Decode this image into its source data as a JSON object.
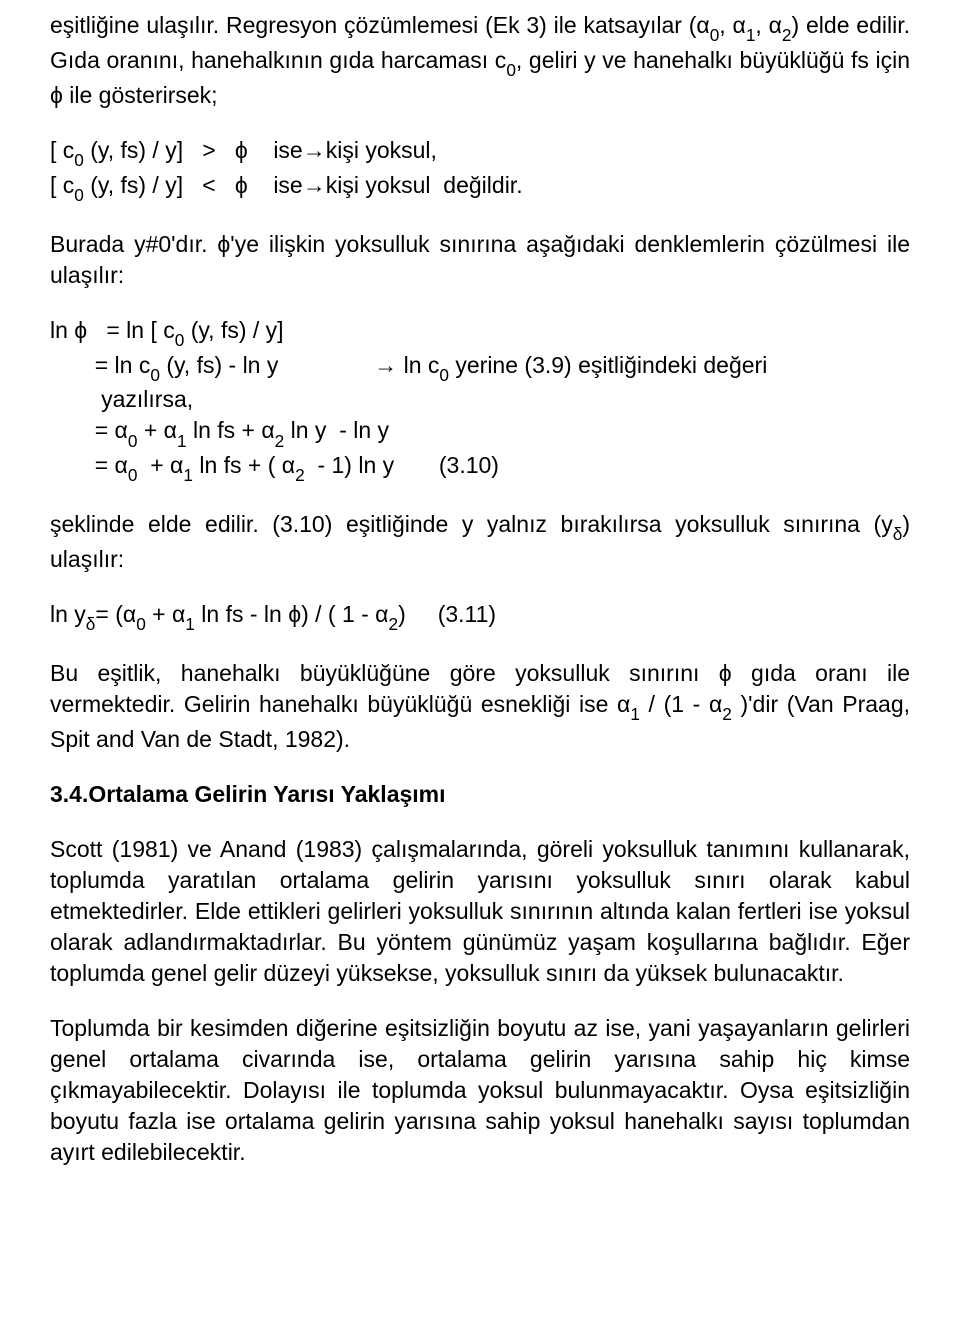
{
  "p1_pre": "eşitliğine ulaşılır. Regresyon çözümlemesi (Ek 3) ile katsayılar (α",
  "p1_s0": "0",
  "p1_mid1": ", α",
  "p1_s1": "1",
  "p1_mid2": ", α",
  "p1_s2": "2",
  "p1_post": ") elde edilir. Gıda oranını, hanehalkının gıda harcaması c",
  "p1_s3": "0",
  "p1_end": ", geliri y ve hanehalkı büyüklüğü fs için  ϕ ile gösterirsek;",
  "l1_pre": "[ c",
  "l1_s0": "0",
  "l1_post": " (y, fs) / y]   >   ϕ    ise→kişi yoksul,",
  "l2_pre": "[ c",
  "l2_s0": "0",
  "l2_post": " (y, fs) / y]   <   ϕ    ise→kişi yoksul  değildir.",
  "p2": "Burada        y#0'dır.    ϕ'ye  ilişkin  yoksulluk  sınırına  aşağıdaki  denklemlerin çözülmesi ile ulaşılır:",
  "d1_pre": "ln ϕ   = ln [ c",
  "d1_s0": "0",
  "d1_post": " (y, fs) / y]",
  "d2_pre": "       = ln c",
  "d2_s0": "0",
  "d2_mid": " (y, fs) - ln y               → ln c",
  "d2_s1": "0",
  "d2_post": " yerine (3.9) eşitliğindeki değeri",
  "d2b": "        yazılırsa,",
  "d3_pre": "       = α",
  "d3_s0": "0",
  "d3_m1": " + α",
  "d3_s1": "1",
  "d3_m2": " ln fs + α",
  "d3_s2": "2",
  "d3_post": " ln y  - ln y",
  "d4_pre": "       = α",
  "d4_s0": "0",
  "d4_m1": "  + α",
  "d4_s1": "1",
  "d4_m2": " ln fs + ( α",
  "d4_s2": "2",
  "d4_post": "  - 1) ln y       (3.10)",
  "p3_pre": "şeklinde elde  edilir.  (3.10) eşitliğinde y   yalnız  bırakılırsa  yoksulluk  sınırına (y",
  "p3_s0": "δ",
  "p3_post": ") ulaşılır:",
  "e1_pre": "ln y",
  "e1_s0": "δ",
  "e1_m1": "= (α",
  "e1_s1": "0",
  "e1_m2": " + α",
  "e1_s2": "1",
  "e1_m3": " ln fs - ln ϕ) / ( 1 - α",
  "e1_s3": "2",
  "e1_post": ")     (3.11)",
  "p4_pre": "Bu  eşitlik,  hanehalkı  büyüklüğüne  göre  yoksulluk  sınırını   ϕ  gıda  oranı  ile vermektedir.  Gelirin  hanehalkı  büyüklüğü  esnekliği  ise  α",
  "p4_s0": "1",
  "p4_mid": "   /  (1  -   α",
  "p4_s1": "2",
  "p4_post": "  )'dir (Van Praag, Spit and Van de Stadt, 1982).",
  "h1": "3.4.Ortalama Gelirin Yarısı Yaklaşımı",
  "p5": "Scott  (1981)  ve  Anand  (1983)  çalışmalarında,  göreli  yoksulluk  tanımını kullanarak, toplumda yaratılan ortalama gelirin yarısını yoksulluk sınırı olarak kabul  etmektedirler.  Elde  ettikleri  gelirleri  yoksulluk  sınırının  altında  kalan fertleri  ise  yoksul  olarak  adlandırmaktadırlar.  Bu  yöntem  günümüz  yaşam koşullarına  bağlıdır.  Eğer  toplumda  genel  gelir  düzeyi  yüksekse,  yoksulluk sınırı da yüksek bulunacaktır.",
  "p6": "Toplumda bir kesimden diğerine eşitsizliğin boyutu az ise, yani yaşayanların gelirleri  genel  ortalama  civarında  ise,  ortalama  gelirin  yarısına  sahip  hiç kimse  çıkmayabilecektir. Dolayısı ile toplumda yoksul bulunmayacaktır. Oysa eşitsizliğin boyutu fazla ise ortalama gelirin yarısına sahip yoksul hanehalkı sayısı toplumdan ayırt edilebilecektir."
}
